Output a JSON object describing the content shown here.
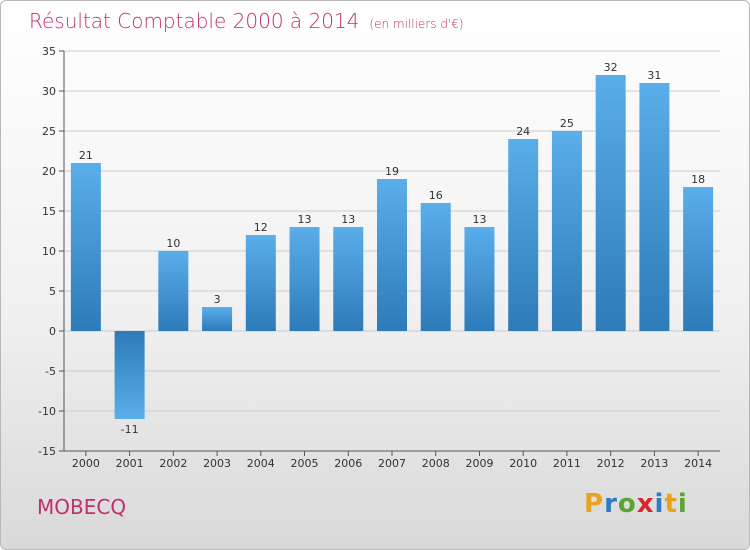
{
  "title": "Résultat Comptable 2000 à 2014",
  "subtitle": "(en milliers d'€)",
  "place": "MOBECQ",
  "brand": {
    "letters": [
      "P",
      "r",
      "o",
      "x",
      "i",
      "t",
      "i"
    ],
    "colors": [
      "#e8a21b",
      "#2f7ac6",
      "#5aa532",
      "#d9262c",
      "#2f7ac6",
      "#e8a21b",
      "#5aa532"
    ]
  },
  "colors": {
    "bar_light": "#5aaeea",
    "bar_dark": "#2d7bb8",
    "grid": "#cccccc",
    "title": "#c0306e"
  },
  "chart_data": {
    "type": "bar",
    "title": "Résultat Comptable 2000 à 2014",
    "subtitle": "(en milliers d'€)",
    "xlabel": "",
    "ylabel": "",
    "categories": [
      "2000",
      "2001",
      "2002",
      "2003",
      "2004",
      "2005",
      "2006",
      "2007",
      "2008",
      "2009",
      "2010",
      "2011",
      "2012",
      "2013",
      "2014"
    ],
    "values": [
      21,
      -11,
      10,
      3,
      12,
      13,
      13,
      19,
      16,
      13,
      24,
      25,
      32,
      31,
      18
    ],
    "value_labels": [
      "21",
      "-11",
      "10",
      "3",
      "12",
      "13",
      "13",
      "19",
      "16",
      "13",
      "24",
      "25",
      "32",
      "31",
      "18"
    ],
    "ylim": [
      -15,
      35
    ],
    "yticks": [
      -15,
      -10,
      -5,
      0,
      5,
      10,
      15,
      20,
      25,
      30,
      35
    ],
    "ytick_labels": [
      "-15",
      "-10",
      "-5",
      "0",
      "5",
      "10",
      "15",
      "20",
      "25",
      "30",
      "35"
    ],
    "grid": true,
    "legend": "none"
  }
}
